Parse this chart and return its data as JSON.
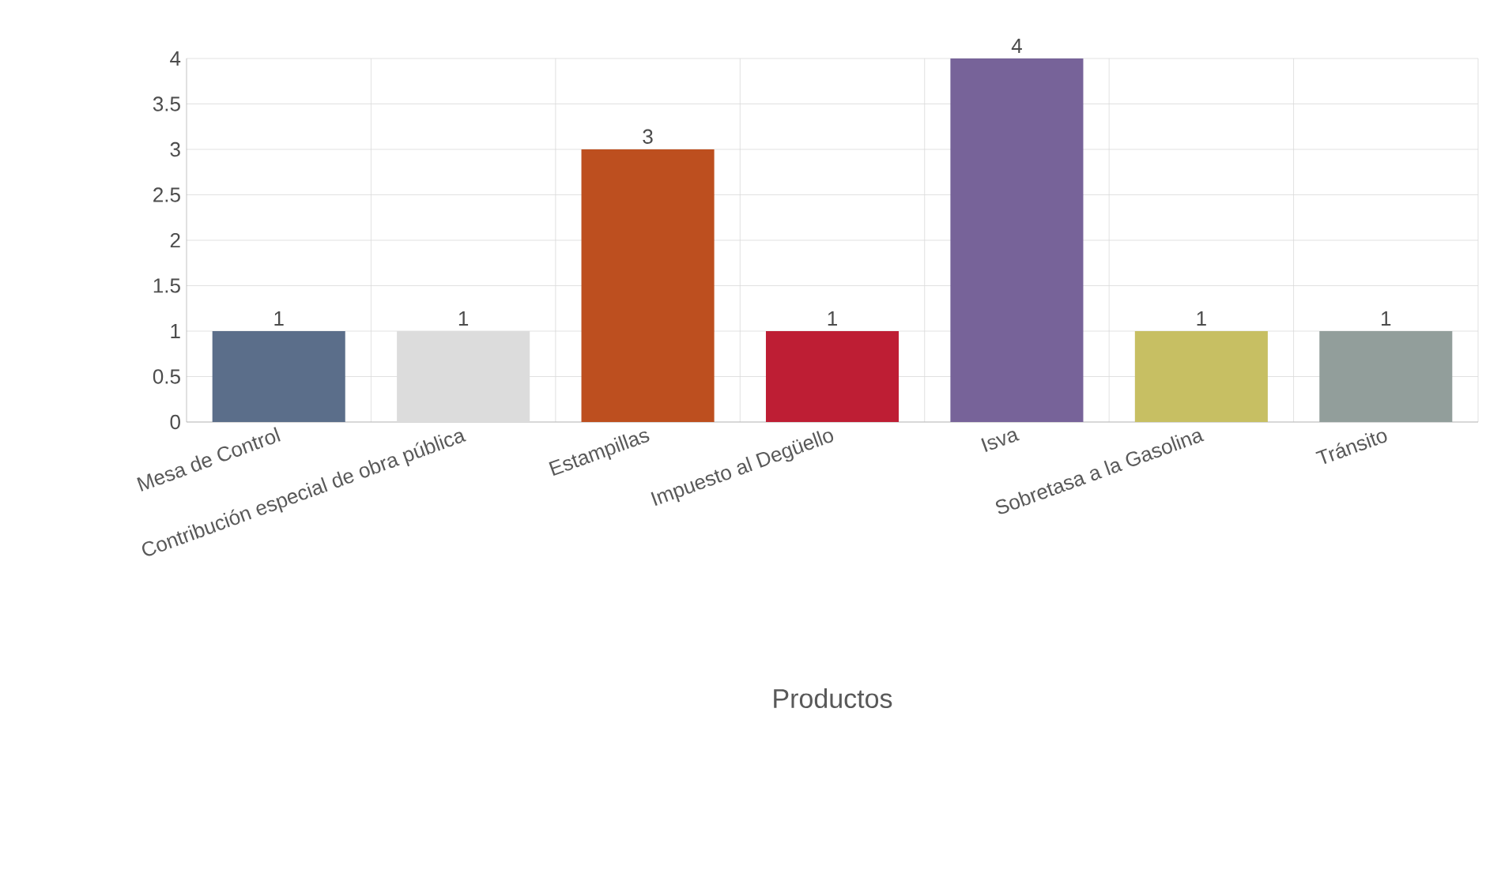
{
  "chart_data": {
    "type": "bar",
    "xlabel": "Productos",
    "categories": [
      "Mesa de Control",
      "Contribución especial de obra pública",
      "Estampillas",
      "Impuesto al Degüello",
      "Isva",
      "Sobretasa a la Gasolina",
      "Tránsito"
    ],
    "values": [
      1,
      1,
      3,
      1,
      4,
      1,
      1
    ],
    "colors": [
      "#5b6e8a",
      "#dcdcdc",
      "#bd4f1f",
      "#be1e34",
      "#776399",
      "#c7bf63",
      "#929e9b"
    ],
    "ylim": [
      0,
      4
    ],
    "yticks": [
      0,
      0.5,
      1,
      1.5,
      2,
      2.5,
      3,
      3.5,
      4
    ],
    "grid": true,
    "data_labels": true
  }
}
